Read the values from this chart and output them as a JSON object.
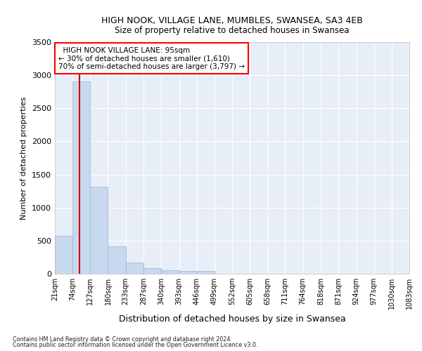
{
  "title": "HIGH NOOK, VILLAGE LANE, MUMBLES, SWANSEA, SA3 4EB",
  "subtitle": "Size of property relative to detached houses in Swansea",
  "xlabel": "Distribution of detached houses by size in Swansea",
  "ylabel": "Number of detached properties",
  "footnote1": "Contains HM Land Registry data © Crown copyright and database right 2024.",
  "footnote2": "Contains public sector information licensed under the Open Government Licence v3.0.",
  "annotation_title": "HIGH NOOK VILLAGE LANE: 95sqm",
  "annotation_line1": "← 30% of detached houses are smaller (1,610)",
  "annotation_line2": "70% of semi-detached houses are larger (3,797) →",
  "property_size": 95,
  "bar_color": "#c8d8ee",
  "bar_edgecolor": "#a0bcd8",
  "redline_color": "#cc0000",
  "background_color": "#e8eef8",
  "bin_edges": [
    21,
    74,
    127,
    180,
    233,
    287,
    340,
    393,
    446,
    499,
    552,
    605,
    658,
    711,
    764,
    818,
    871,
    924,
    977,
    1030,
    1083
  ],
  "bin_labels": [
    "21sqm",
    "74sqm",
    "127sqm",
    "180sqm",
    "233sqm",
    "287sqm",
    "340sqm",
    "393sqm",
    "446sqm",
    "499sqm",
    "552sqm",
    "605sqm",
    "658sqm",
    "711sqm",
    "764sqm",
    "818sqm",
    "871sqm",
    "924sqm",
    "977sqm",
    "1030sqm",
    "1083sqm"
  ],
  "counts": [
    570,
    2910,
    1310,
    410,
    170,
    80,
    55,
    45,
    40,
    0,
    0,
    0,
    0,
    0,
    0,
    0,
    0,
    0,
    0,
    0
  ],
  "ylim": [
    0,
    3500
  ],
  "yticks": [
    0,
    500,
    1000,
    1500,
    2000,
    2500,
    3000,
    3500
  ]
}
